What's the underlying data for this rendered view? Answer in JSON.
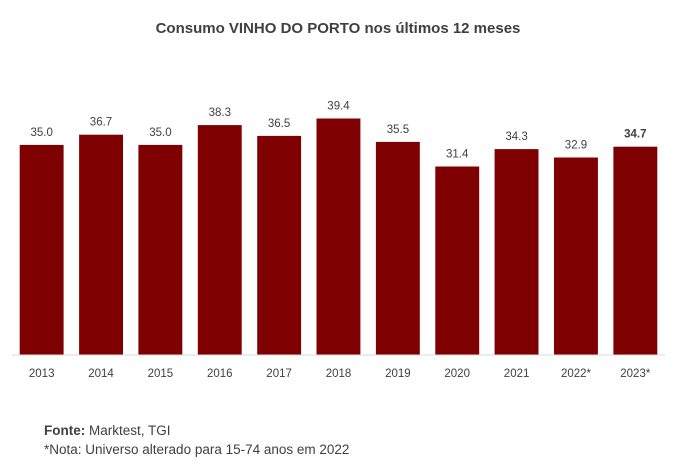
{
  "chart_data": {
    "type": "bar",
    "title": "Consumo VINHO DO PORTO nos últimos 12 meses",
    "categories": [
      "2013",
      "2014",
      "2015",
      "2016",
      "2017",
      "2018",
      "2019",
      "2020",
      "2021",
      "2022*",
      "2023*"
    ],
    "values": [
      35.0,
      36.7,
      35.0,
      38.3,
      36.5,
      39.4,
      35.5,
      31.4,
      34.3,
      32.9,
      34.7
    ],
    "value_labels": [
      "35.0",
      "36.7",
      "35.0",
      "38.3",
      "36.5",
      "39.4",
      "35.5",
      "31.4",
      "34.3",
      "32.9",
      "34.7"
    ],
    "highlight_index": 10,
    "xlabel": "",
    "ylabel": "",
    "ylim": [
      0,
      42
    ],
    "bar_color": "#7f0000",
    "grid": false,
    "legend": "none"
  },
  "footer": {
    "source_label": "Fonte:",
    "source_value": " Marktest, TGI",
    "note": "*Nota: Universo alterado para 15-74 anos em 2022"
  }
}
